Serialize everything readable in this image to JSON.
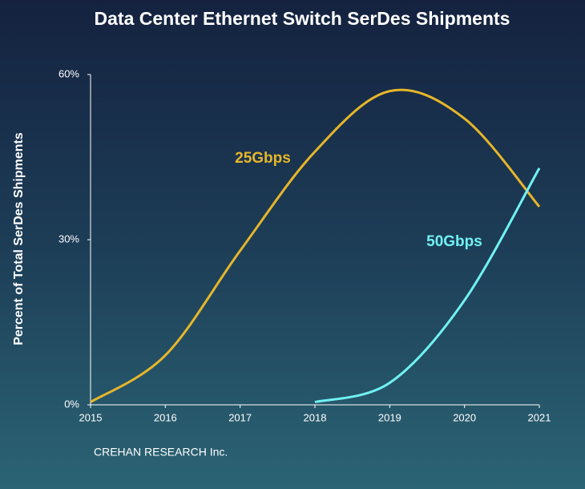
{
  "chart_data": {
    "type": "line",
    "title": "Data Center Ethernet Switch SerDes Shipments",
    "y_label": "Percent of Total SerDes Shipments",
    "source": "CREHAN RESEARCH Inc.",
    "x": [
      2015,
      2016,
      2017,
      2018,
      2019,
      2020,
      2021
    ],
    "xlim": [
      2015,
      2021
    ],
    "xticks": [
      2015,
      2016,
      2017,
      2018,
      2019,
      2020,
      2021
    ],
    "ylim": [
      0,
      60
    ],
    "yticks": [
      {
        "value": 0,
        "label": "0%"
      },
      {
        "value": 30,
        "label": "30%"
      },
      {
        "value": 60,
        "label": "60%"
      }
    ],
    "series": [
      {
        "name": "25Gbps",
        "color": "#e6b62a",
        "values": [
          0.5,
          9,
          28,
          46,
          57,
          52,
          36
        ]
      },
      {
        "name": "50Gbps",
        "color": "#70f2f2",
        "values": [
          null,
          null,
          null,
          0.5,
          4,
          19,
          43
        ]
      }
    ]
  }
}
